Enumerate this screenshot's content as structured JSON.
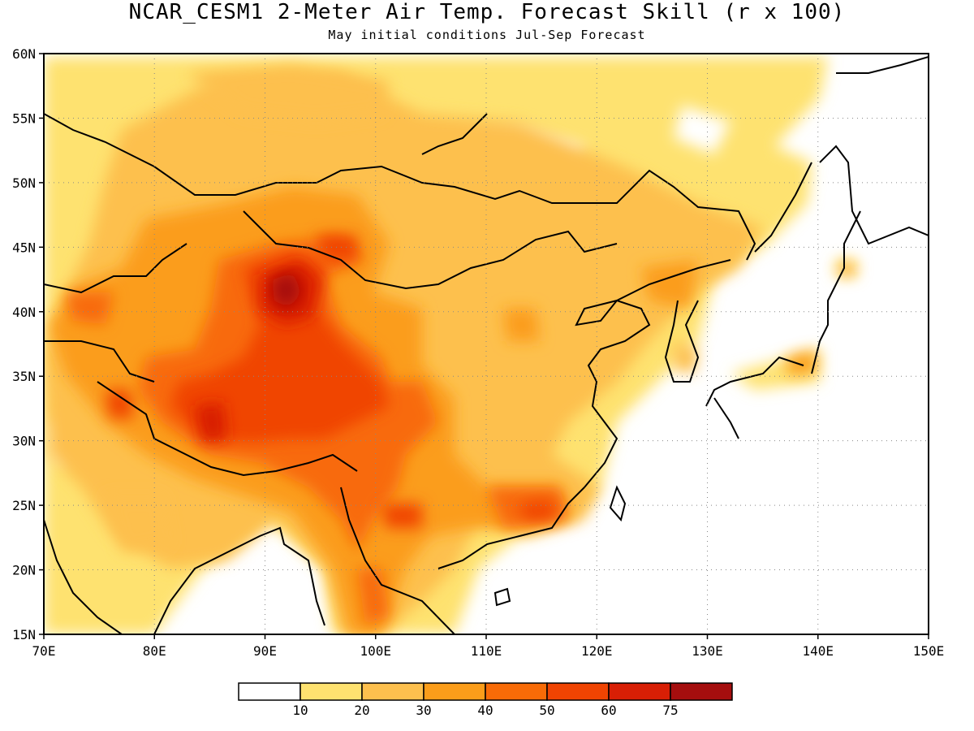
{
  "title": "NCAR_CESM1 2-Meter Air Temp. Forecast Skill (r x 100)",
  "subtitle": "May initial conditions  Jul-Sep Forecast",
  "map": {
    "lon_range": [
      70,
      150
    ],
    "lat_range": [
      15,
      60
    ],
    "lon_ticks": [
      "70E",
      "80E",
      "90E",
      "100E",
      "110E",
      "120E",
      "130E",
      "140E",
      "150E"
    ],
    "lat_ticks": [
      "15N",
      "20N",
      "25N",
      "30N",
      "35N",
      "40N",
      "45N",
      "50N",
      "55N",
      "60N"
    ],
    "gridlines": "dotted"
  },
  "colorbar": {
    "levels": [
      "10",
      "20",
      "30",
      "40",
      "50",
      "60",
      "75"
    ],
    "colors": [
      "#ffffff",
      "#fee270",
      "#fdc04e",
      "#fb9d1a",
      "#f86b07",
      "#f04402",
      "#d81f05",
      "#a50e0e"
    ]
  }
}
